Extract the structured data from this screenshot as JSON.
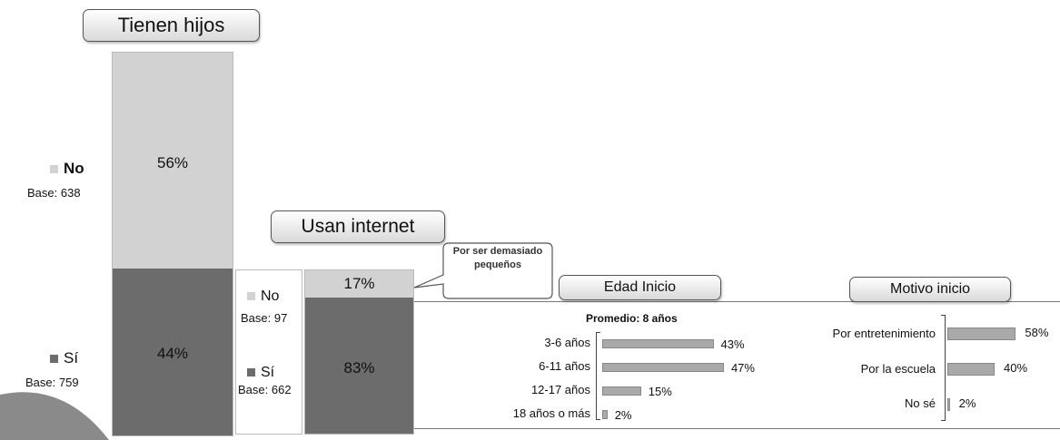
{
  "colors": {
    "no": "#d2d2d2",
    "si": "#6c6c6c",
    "bar": "#a9a9a9"
  },
  "tienen_hijos": {
    "title": "Tienen hijos",
    "no": {
      "label": "No",
      "base": "Base: 638",
      "value": 56,
      "value_label": "56%"
    },
    "si": {
      "label": "Sí",
      "base": "Base: 759",
      "value": 44,
      "value_label": "44%"
    }
  },
  "usan_internet": {
    "title": "Usan internet",
    "no": {
      "label": "No",
      "base": "Base: 97",
      "value": 17,
      "value_label": "17%"
    },
    "si": {
      "label": "Sí",
      "base": "Base: 662",
      "value": 83,
      "value_label": "83%"
    },
    "callout": "Por ser demasiado pequeños"
  },
  "chart_data": [
    {
      "type": "bar",
      "title": "Edad Inicio",
      "subtitle": "Promedio: 8 años",
      "categories": [
        "3-6 años",
        "6-11 años",
        "12-17 años",
        "18 años o más"
      ],
      "values": [
        43,
        47,
        15,
        2
      ],
      "value_labels": [
        "43%",
        "47%",
        "15%",
        "2%"
      ]
    },
    {
      "type": "bar",
      "title": "Motivo inicio",
      "categories": [
        "Por entretenimiento",
        "Por la escuela",
        "No sé"
      ],
      "values": [
        58,
        40,
        2
      ],
      "value_labels": [
        "58%",
        "40%",
        "2%"
      ]
    }
  ]
}
